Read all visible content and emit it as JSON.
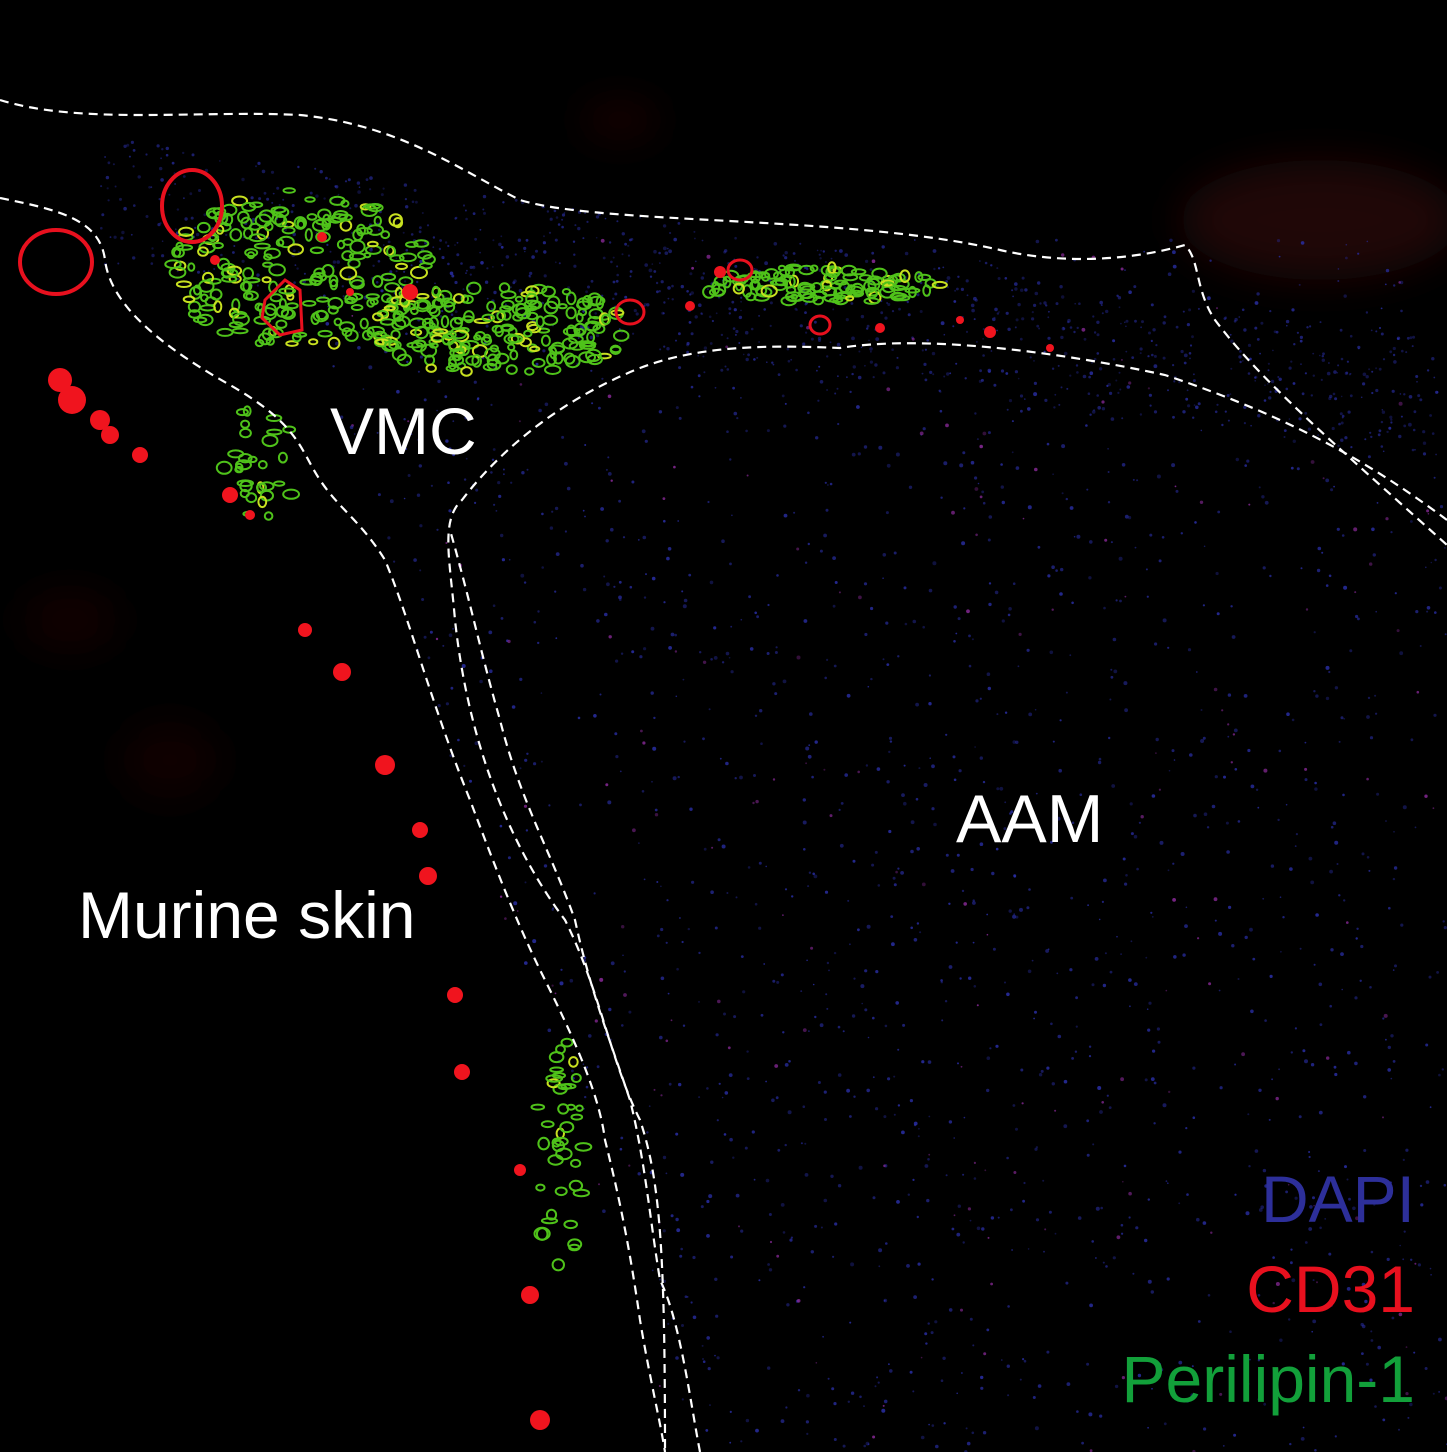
{
  "image": {
    "background": "#000000",
    "regions": [
      {
        "id": "vmc",
        "label": "VMC"
      },
      {
        "id": "aam",
        "label": "AAM"
      },
      {
        "id": "skin",
        "label": "Murine skin"
      }
    ],
    "legend": [
      {
        "label": "DAPI",
        "color": "#2d2f9a"
      },
      {
        "label": "CD31",
        "color": "#e8101e"
      },
      {
        "label": "Perilipin-1",
        "color": "#12a03a"
      }
    ],
    "boundary_style": "white dashed outline"
  }
}
